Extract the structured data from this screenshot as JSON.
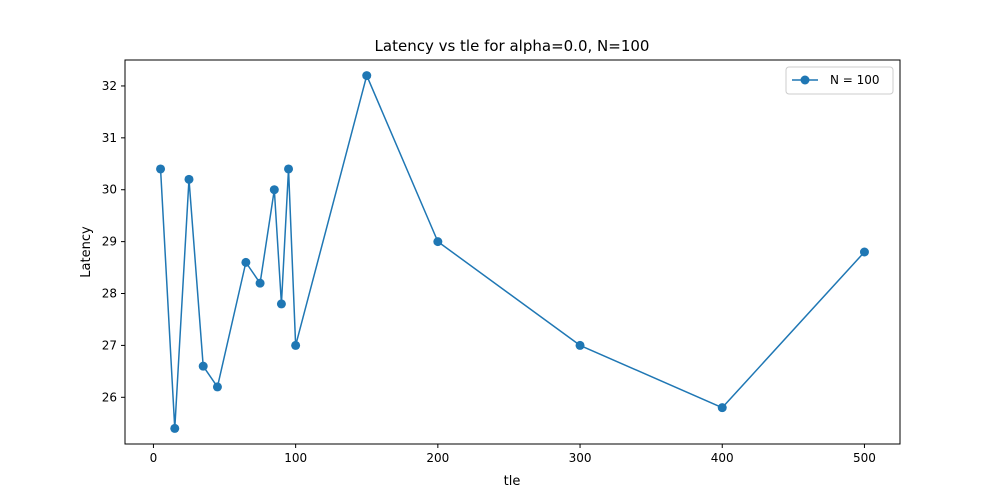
{
  "chart_data": {
    "type": "line",
    "title": "Latency vs tle for alpha=0.0, N=100",
    "xlabel": "tle",
    "ylabel": "Latency",
    "xlim": [
      -20,
      525
    ],
    "ylim": [
      25.1,
      32.5
    ],
    "xticks": [
      0,
      100,
      200,
      300,
      400,
      500
    ],
    "yticks": [
      26,
      27,
      28,
      29,
      30,
      31,
      32
    ],
    "grid": false,
    "legend_position": "top-right",
    "series": [
      {
        "name": "N = 100",
        "color": "#1f77b4",
        "marker": "circle",
        "x": [
          5,
          15,
          25,
          35,
          45,
          65,
          75,
          85,
          90,
          95,
          100,
          150,
          200,
          300,
          400,
          500
        ],
        "y": [
          30.4,
          25.4,
          30.2,
          26.6,
          26.2,
          28.6,
          28.2,
          30.0,
          27.8,
          30.4,
          27.0,
          32.2,
          29.0,
          27.0,
          25.8,
          28.8
        ]
      }
    ]
  }
}
